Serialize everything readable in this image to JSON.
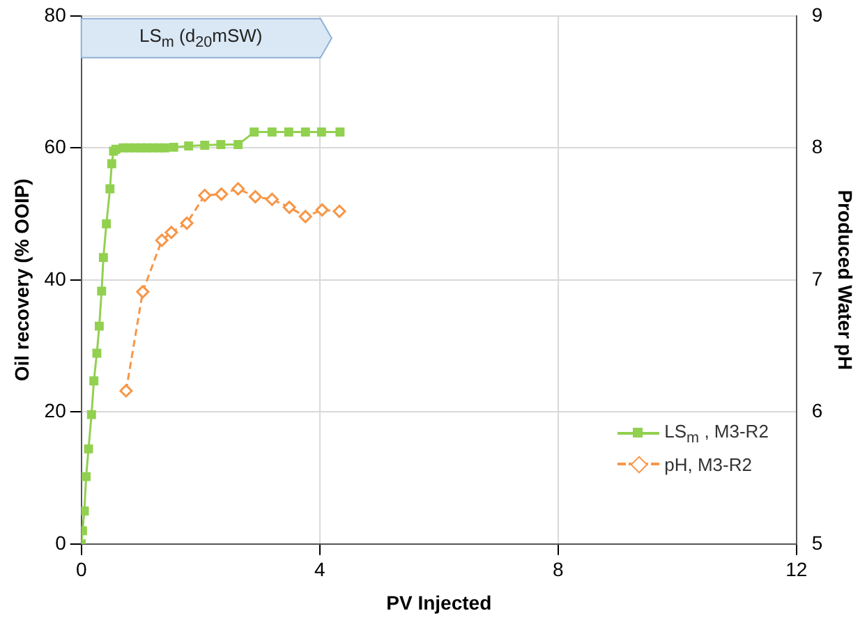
{
  "chart_data": {
    "type": "line",
    "xlabel": "PV Injected",
    "ylabel": "Oil recovery (% OOIP)",
    "y2label": "Produced Water pH",
    "xlim": [
      0,
      12
    ],
    "xticks": [
      0,
      4,
      8,
      12
    ],
    "ylim": [
      0,
      80
    ],
    "yticks": [
      0,
      20,
      40,
      60,
      80
    ],
    "y2lim": [
      5,
      9
    ],
    "y2ticks": [
      5,
      6,
      7,
      8,
      9
    ],
    "grid": true,
    "legend": "bottom right",
    "bands": [
      {
        "axis": "x",
        "from": 0,
        "to": 4.2,
        "label": "LS$_{m}$ (d$_{20}$mSW)",
        "color": "#dae8f5"
      }
    ],
    "series": [
      {
        "name": "LS$_{m}$ , M3-R2",
        "color": "#92d050",
        "marker": "square",
        "line_style": "solid",
        "x": [
          0,
          0.02,
          0.05,
          0.08,
          0.12,
          0.17,
          0.21,
          0.26,
          0.3,
          0.34,
          0.37,
          0.42,
          0.48,
          0.51,
          0.54,
          0.58,
          0.7,
          0.8,
          0.9,
          1.0,
          1.1,
          1.2,
          1.3,
          1.4,
          1.55,
          1.8,
          2.07,
          2.34,
          2.63,
          2.9,
          3.2,
          3.48,
          3.76,
          4.03,
          4.34
        ],
        "values": [
          0,
          2,
          5,
          10.2,
          14.4,
          19.6,
          24.7,
          28.9,
          33,
          38.3,
          43.4,
          48.5,
          53.8,
          57.6,
          59.5,
          59.8,
          60,
          60,
          60,
          60,
          60,
          60,
          60,
          60,
          60.1,
          60.3,
          60.4,
          60.5,
          60.5,
          62.4,
          62.4,
          62.4,
          62.4,
          62.4,
          62.4
        ]
      },
      {
        "name": "pH, M3-R2",
        "color": "#f79646",
        "marker": "diamond",
        "line_style": "dashed",
        "axis": "y2",
        "x": [
          0.75,
          1.03,
          1.35,
          1.51,
          1.77,
          2.07,
          2.35,
          2.63,
          2.92,
          3.2,
          3.49,
          3.76,
          4.04,
          4.33
        ],
        "values": [
          6.16,
          6.91,
          7.3,
          7.36,
          7.43,
          7.64,
          7.65,
          7.69,
          7.63,
          7.61,
          7.55,
          7.48,
          7.53,
          7.52
        ]
      }
    ]
  }
}
